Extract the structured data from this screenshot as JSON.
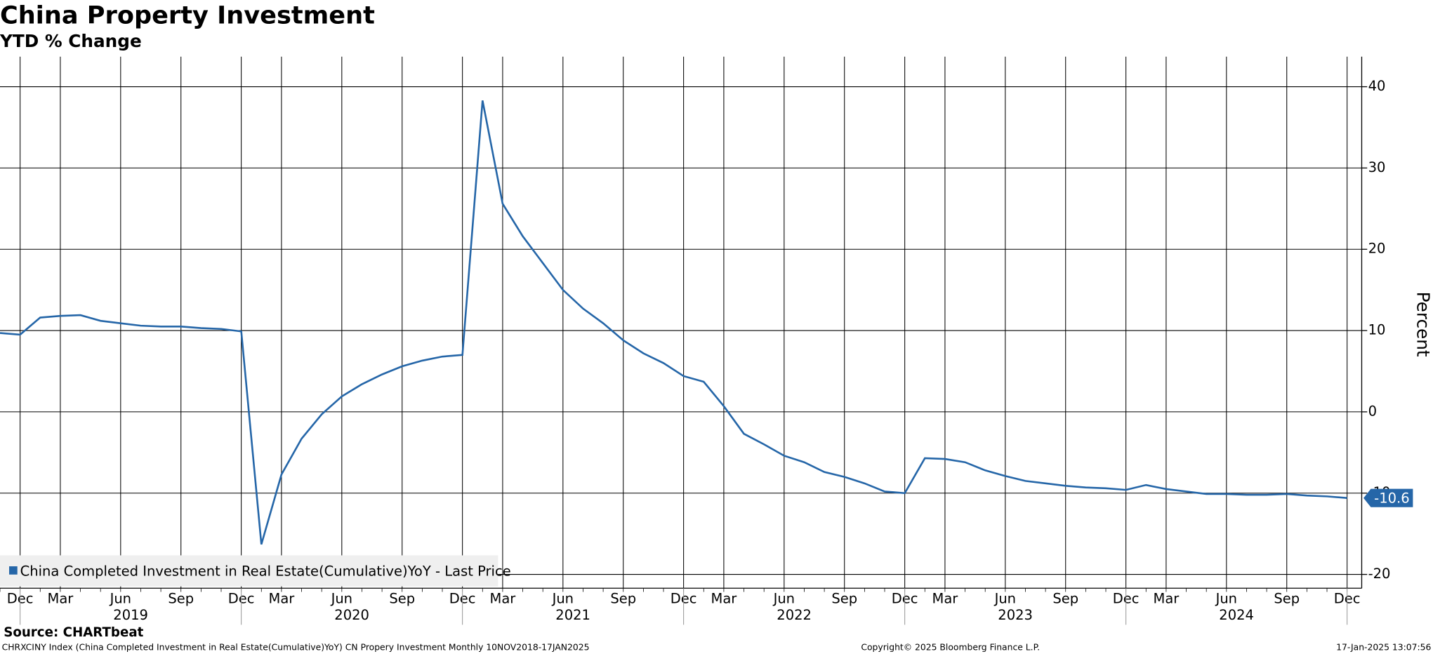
{
  "chart_data": {
    "type": "line",
    "title": "China Property Investment",
    "subtitle": "YTD % Change",
    "y_axis_label": "Percent",
    "source": "Source: CHARTbeat",
    "footer_left": "CHRXCINY Index (China Completed Investment in Real Estate(Cumulative)YoY) CN Propery Investment  Monthly 10NOV2018-17JAN2025",
    "footer_center": "Copyright© 2025 Bloomberg Finance L.P.",
    "footer_right": "17-Jan-2025 13:07:56",
    "categories": [
      "2018-11",
      "2018-12",
      "2019-02",
      "2019-03",
      "2019-04",
      "2019-05",
      "2019-06",
      "2019-07",
      "2019-08",
      "2019-09",
      "2019-10",
      "2019-11",
      "2019-12",
      "2020-02",
      "2020-03",
      "2020-04",
      "2020-05",
      "2020-06",
      "2020-07",
      "2020-08",
      "2020-09",
      "2020-10",
      "2020-11",
      "2020-12",
      "2021-02",
      "2021-03",
      "2021-04",
      "2021-05",
      "2021-06",
      "2021-07",
      "2021-08",
      "2021-09",
      "2021-10",
      "2021-11",
      "2021-12",
      "2022-02",
      "2022-03",
      "2022-04",
      "2022-05",
      "2022-06",
      "2022-07",
      "2022-08",
      "2022-09",
      "2022-10",
      "2022-11",
      "2022-12",
      "2023-02",
      "2023-03",
      "2023-04",
      "2023-05",
      "2023-06",
      "2023-07",
      "2023-08",
      "2023-09",
      "2023-10",
      "2023-11",
      "2023-12",
      "2024-02",
      "2024-03",
      "2024-04",
      "2024-05",
      "2024-06",
      "2024-07",
      "2024-08",
      "2024-09",
      "2024-10",
      "2024-11",
      "2024-12"
    ],
    "series": [
      {
        "name": "China Completed Investment in Real Estate(Cumulative)YoY - Last Price",
        "color": "#2566a8",
        "values": [
          9.7,
          9.5,
          11.6,
          11.8,
          11.9,
          11.2,
          10.9,
          10.6,
          10.5,
          10.5,
          10.3,
          10.2,
          9.9,
          -16.3,
          -7.7,
          -3.3,
          -0.3,
          1.9,
          3.4,
          4.6,
          5.6,
          6.3,
          6.8,
          7.0,
          38.3,
          25.6,
          21.6,
          18.3,
          15.0,
          12.7,
          10.9,
          8.8,
          7.2,
          6.0,
          4.4,
          3.7,
          0.7,
          -2.7,
          -4.0,
          -5.4,
          -6.2,
          -7.4,
          -8.0,
          -8.8,
          -9.8,
          -10.0,
          -5.7,
          -5.8,
          -6.2,
          -7.2,
          -7.9,
          -8.5,
          -8.8,
          -9.1,
          -9.3,
          -9.4,
          -9.6,
          -9.0,
          -9.5,
          -9.8,
          -10.1,
          -10.1,
          -10.2,
          -10.2,
          -10.1,
          -10.3,
          -10.4,
          -10.6
        ]
      }
    ],
    "ylim": [
      -21.7,
      43.7
    ],
    "yticks": [
      -20,
      -10,
      0,
      10,
      20,
      30,
      40
    ],
    "xticks": [
      {
        "value": "2018-12",
        "label": "Dec"
      },
      {
        "value": "2019-03",
        "label": "Mar"
      },
      {
        "value": "2019-06",
        "label": "Jun"
      },
      {
        "value": "2019-09",
        "label": "Sep"
      },
      {
        "value": "2019-12",
        "label": "Dec"
      },
      {
        "value": "2020-03",
        "label": "Mar"
      },
      {
        "value": "2020-06",
        "label": "Jun"
      },
      {
        "value": "2020-09",
        "label": "Sep"
      },
      {
        "value": "2020-12",
        "label": "Dec"
      },
      {
        "value": "2021-03",
        "label": "Mar"
      },
      {
        "value": "2021-06",
        "label": "Jun"
      },
      {
        "value": "2021-09",
        "label": "Sep"
      },
      {
        "value": "2021-12",
        "label": "Dec"
      },
      {
        "value": "2022-03",
        "label": "Mar"
      },
      {
        "value": "2022-06",
        "label": "Jun"
      },
      {
        "value": "2022-09",
        "label": "Sep"
      },
      {
        "value": "2022-12",
        "label": "Dec"
      },
      {
        "value": "2023-03",
        "label": "Mar"
      },
      {
        "value": "2023-06",
        "label": "Jun"
      },
      {
        "value": "2023-09",
        "label": "Sep"
      },
      {
        "value": "2023-12",
        "label": "Dec"
      },
      {
        "value": "2024-03",
        "label": "Mar"
      },
      {
        "value": "2024-06",
        "label": "Jun"
      },
      {
        "value": "2024-09",
        "label": "Sep"
      },
      {
        "value": "2024-12",
        "label": "Dec"
      }
    ],
    "year_labels": [
      "2019",
      "2020",
      "2021",
      "2022",
      "2023",
      "2024"
    ],
    "grid": true,
    "legend_position": "lower left"
  }
}
